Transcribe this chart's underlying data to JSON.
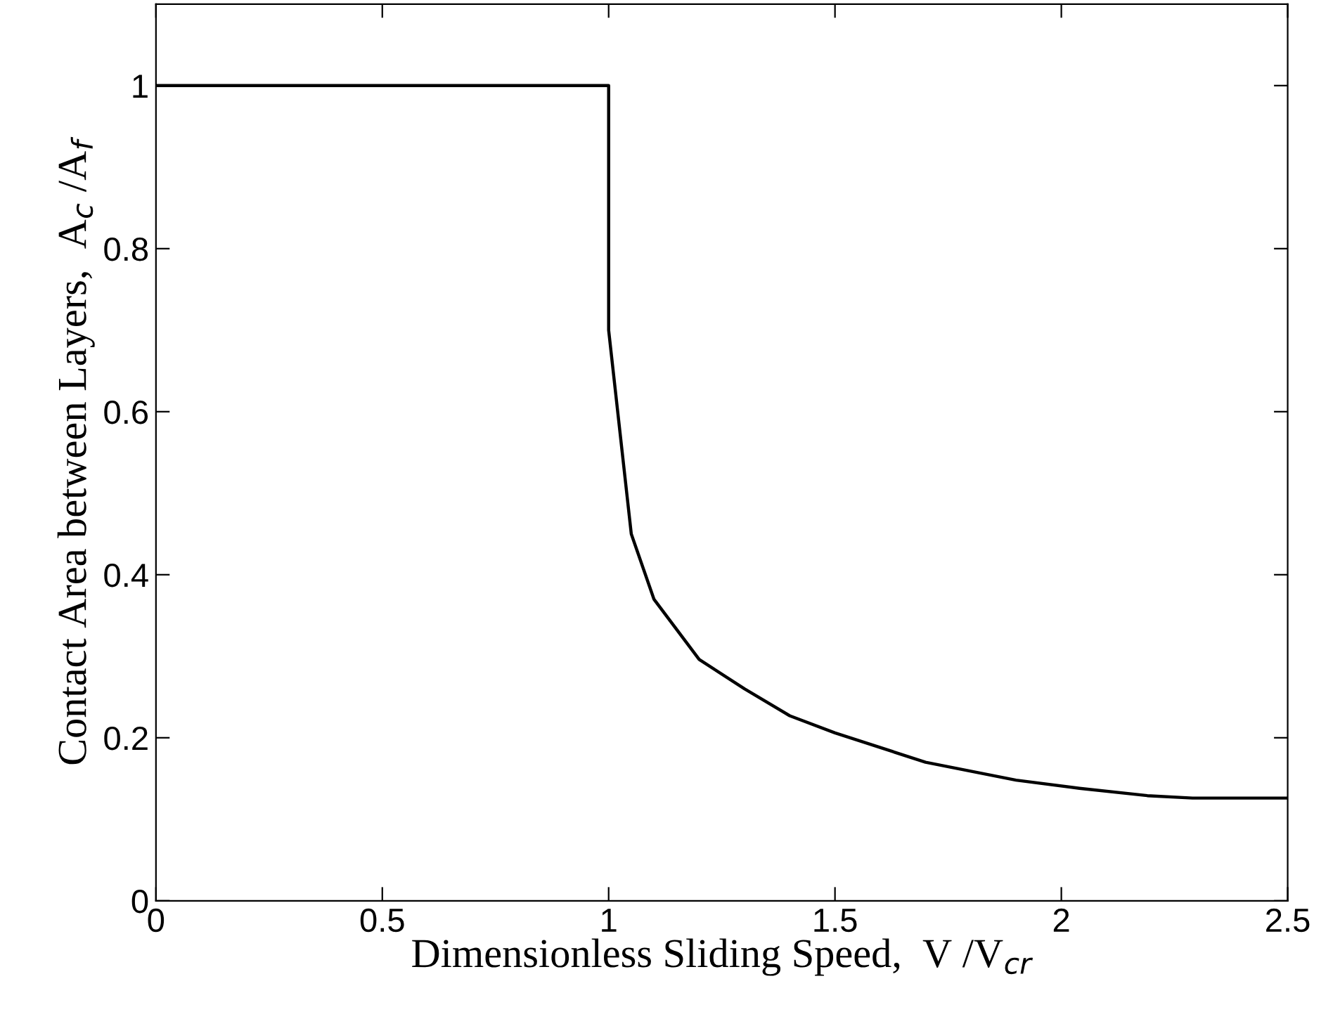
{
  "chart_data": {
    "type": "line",
    "xlabel": "Dimensionless Sliding Speed,  V /V$_{cr}$",
    "ylabel": "Contact Area between Layers,  A$_{c}$ /A$_{f}$",
    "series": [
      {
        "color": "#000000",
        "x": [
          0,
          1.0,
          1.0,
          1.05,
          1.1,
          1.2,
          1.3,
          1.4,
          1.5,
          1.7,
          1.9,
          2.04,
          2.19,
          2.29,
          2.5
        ],
        "values": [
          1.0,
          1.0,
          0.7,
          0.45,
          0.37,
          0.296,
          0.26,
          0.227,
          0.206,
          0.17,
          0.148,
          0.138,
          0.129,
          0.126,
          0.126
        ]
      }
    ],
    "xlim": [
      0,
      2.5
    ],
    "ylim": [
      0,
      1.1
    ],
    "xticks": [
      0,
      0.5,
      1,
      1.5,
      2,
      2.5
    ],
    "yticks": [
      0,
      0.2,
      0.4,
      0.6,
      0.8,
      1
    ],
    "marker": "none",
    "line_style": "solid"
  }
}
